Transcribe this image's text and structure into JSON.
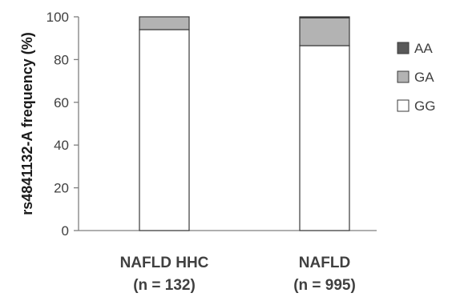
{
  "chart_data": {
    "type": "bar",
    "stacked": true,
    "ylabel": "rs4841132-A frequency (%)",
    "xlabel": "",
    "ylim": [
      0,
      100
    ],
    "yticks": [
      0,
      20,
      40,
      60,
      80,
      100
    ],
    "grid": false,
    "legend_position": "right",
    "categories": [
      {
        "name": "NAFLD HHC",
        "n_label": "(n = 132)"
      },
      {
        "name": "NAFLD",
        "n_label": "(n = 995)"
      }
    ],
    "series": [
      {
        "name": "GG",
        "color": "#ffffff",
        "values": [
          94.0,
          86.5
        ]
      },
      {
        "name": "GA",
        "color": "#b3b3b3",
        "values": [
          6.0,
          13.0
        ]
      },
      {
        "name": "AA",
        "color": "#595959",
        "values": [
          0.0,
          0.5
        ]
      }
    ],
    "legend_order": [
      "AA",
      "GA",
      "GG"
    ]
  }
}
